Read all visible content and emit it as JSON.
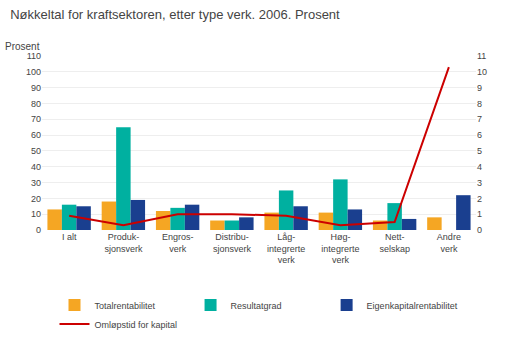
{
  "chart_data": {
    "type": "bar",
    "title": "Nøkkeltal for kraftsektoren, etter type verk. 2006. Prosent",
    "ylabel": "Prosent",
    "categories": [
      "I alt",
      "Produk-\nsjonsverk",
      "Engros-\nverk",
      "Distribu-\nsjonsverk",
      "Låg-\nintegrerte\nverk",
      "Høg-\nintegrerte\nverk",
      "Nett-\nselskap",
      "Andre\nverk"
    ],
    "series": [
      {
        "name": "Totalrentabilitet",
        "color": "#f5a623",
        "values": [
          13,
          18,
          12,
          6,
          11,
          11,
          6,
          8
        ]
      },
      {
        "name": "Resultatgrad",
        "color": "#00b0a0",
        "values": [
          16,
          65,
          14,
          6,
          25,
          32,
          17,
          0
        ]
      },
      {
        "name": "Eigenkapitalrentabilitet",
        "color": "#1a3f8f",
        "values": [
          15,
          19,
          16,
          8,
          15,
          13,
          7,
          22
        ]
      },
      {
        "name": "Omløpstid for kapital",
        "type": "line",
        "axis": "y2",
        "color": "#cc0000",
        "values": [
          0.9,
          0.3,
          1.0,
          1.0,
          0.9,
          0.3,
          0.5,
          10.3
        ]
      }
    ],
    "ylim": [
      0,
      110
    ],
    "yticks": [
      0,
      10,
      20,
      30,
      40,
      50,
      60,
      70,
      80,
      90,
      100,
      110
    ],
    "y2lim": [
      0,
      11
    ],
    "y2ticks": [
      0,
      1,
      2,
      3,
      4,
      5,
      6,
      7,
      8,
      9,
      10,
      11
    ],
    "grid": true,
    "legend": "bottom"
  }
}
